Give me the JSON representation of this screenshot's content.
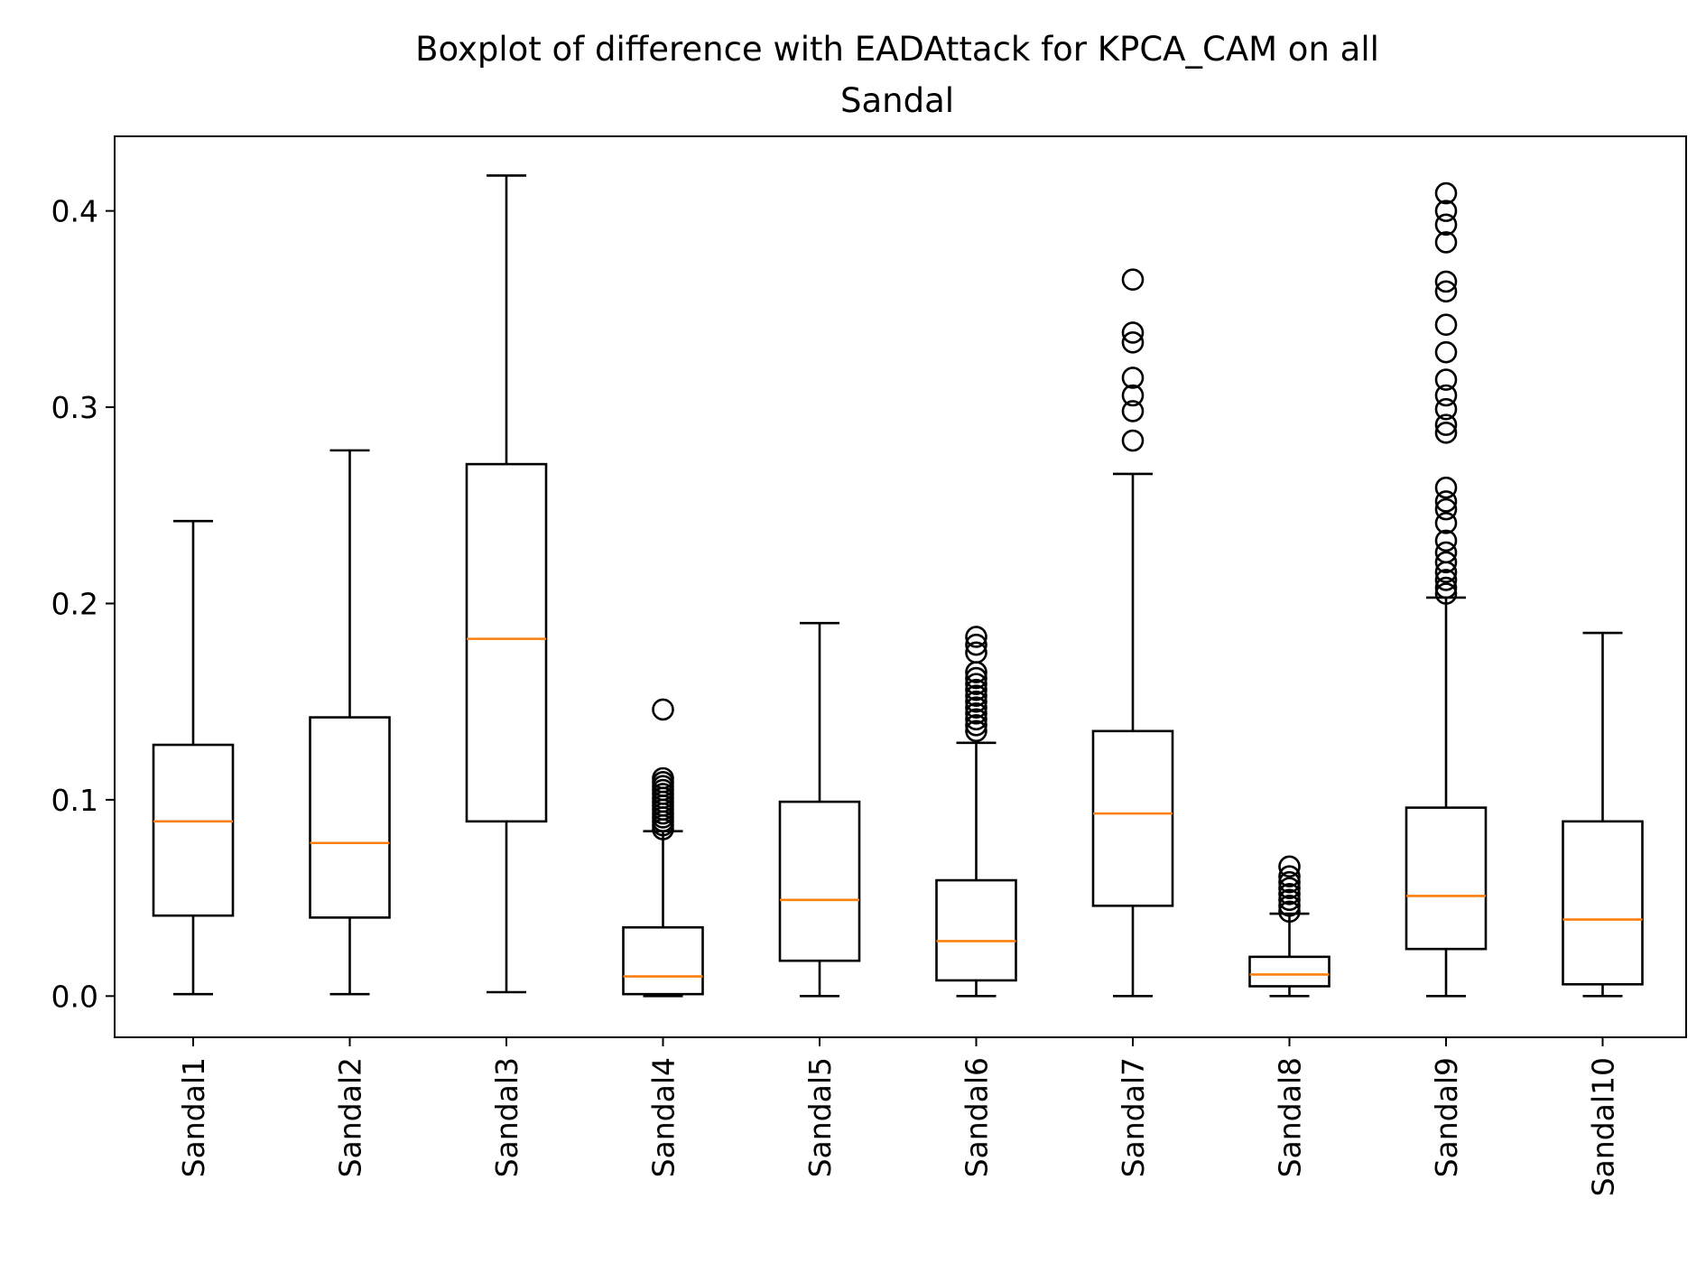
{
  "chart_data": {
    "type": "boxplot",
    "title": [
      "Boxplot of difference with EADAttack for KPCA_CAM on all",
      "Sandal"
    ],
    "xlabel": "",
    "ylabel": "",
    "ylim": [
      -0.021,
      0.438
    ],
    "yticks": [
      0.0,
      0.1,
      0.2,
      0.3,
      0.4
    ],
    "ytick_labels": [
      "0.0",
      "0.1",
      "0.2",
      "0.3",
      "0.4"
    ],
    "grid": false,
    "colors": {
      "box": "#000000",
      "median": "#ff7f0e",
      "outlier": "#000000"
    },
    "categories": [
      "Sandal1",
      "Sandal2",
      "Sandal3",
      "Sandal4",
      "Sandal5",
      "Sandal6",
      "Sandal7",
      "Sandal8",
      "Sandal9",
      "Sandal10"
    ],
    "boxes": [
      {
        "label": "Sandal1",
        "whislo": 0.001,
        "q1": 0.041,
        "med": 0.089,
        "q3": 0.128,
        "whishi": 0.242,
        "fliers": []
      },
      {
        "label": "Sandal2",
        "whislo": 0.001,
        "q1": 0.04,
        "med": 0.078,
        "q3": 0.142,
        "whishi": 0.278,
        "fliers": []
      },
      {
        "label": "Sandal3",
        "whislo": 0.002,
        "q1": 0.089,
        "med": 0.182,
        "q3": 0.271,
        "whishi": 0.418,
        "fliers": []
      },
      {
        "label": "Sandal4",
        "whislo": 0.0,
        "q1": 0.001,
        "med": 0.01,
        "q3": 0.035,
        "whishi": 0.084,
        "fliers": [
          0.085,
          0.087,
          0.089,
          0.091,
          0.093,
          0.095,
          0.097,
          0.099,
          0.101,
          0.103,
          0.105,
          0.107,
          0.109,
          0.111,
          0.146
        ]
      },
      {
        "label": "Sandal5",
        "whislo": 0.0,
        "q1": 0.018,
        "med": 0.049,
        "q3": 0.099,
        "whishi": 0.19,
        "fliers": []
      },
      {
        "label": "Sandal6",
        "whislo": 0.0,
        "q1": 0.008,
        "med": 0.028,
        "q3": 0.059,
        "whishi": 0.129,
        "fliers": [
          0.135,
          0.138,
          0.141,
          0.144,
          0.147,
          0.15,
          0.153,
          0.156,
          0.159,
          0.162,
          0.165,
          0.175,
          0.179,
          0.183
        ]
      },
      {
        "label": "Sandal7",
        "whislo": 0.0,
        "q1": 0.046,
        "med": 0.093,
        "q3": 0.135,
        "whishi": 0.266,
        "fliers": [
          0.283,
          0.298,
          0.306,
          0.315,
          0.333,
          0.338,
          0.365
        ]
      },
      {
        "label": "Sandal8",
        "whislo": 0.0,
        "q1": 0.005,
        "med": 0.011,
        "q3": 0.02,
        "whishi": 0.042,
        "fliers": [
          0.043,
          0.046,
          0.049,
          0.052,
          0.055,
          0.058,
          0.061,
          0.066
        ]
      },
      {
        "label": "Sandal9",
        "whislo": 0.0,
        "q1": 0.024,
        "med": 0.051,
        "q3": 0.096,
        "whishi": 0.203,
        "fliers": [
          0.205,
          0.208,
          0.212,
          0.216,
          0.221,
          0.226,
          0.232,
          0.241,
          0.248,
          0.252,
          0.259,
          0.287,
          0.291,
          0.299,
          0.306,
          0.314,
          0.328,
          0.342,
          0.359,
          0.364,
          0.384,
          0.393,
          0.4,
          0.409
        ]
      },
      {
        "label": "Sandal10",
        "whislo": 0.0,
        "q1": 0.006,
        "med": 0.039,
        "q3": 0.089,
        "whishi": 0.185,
        "fliers": []
      }
    ]
  }
}
